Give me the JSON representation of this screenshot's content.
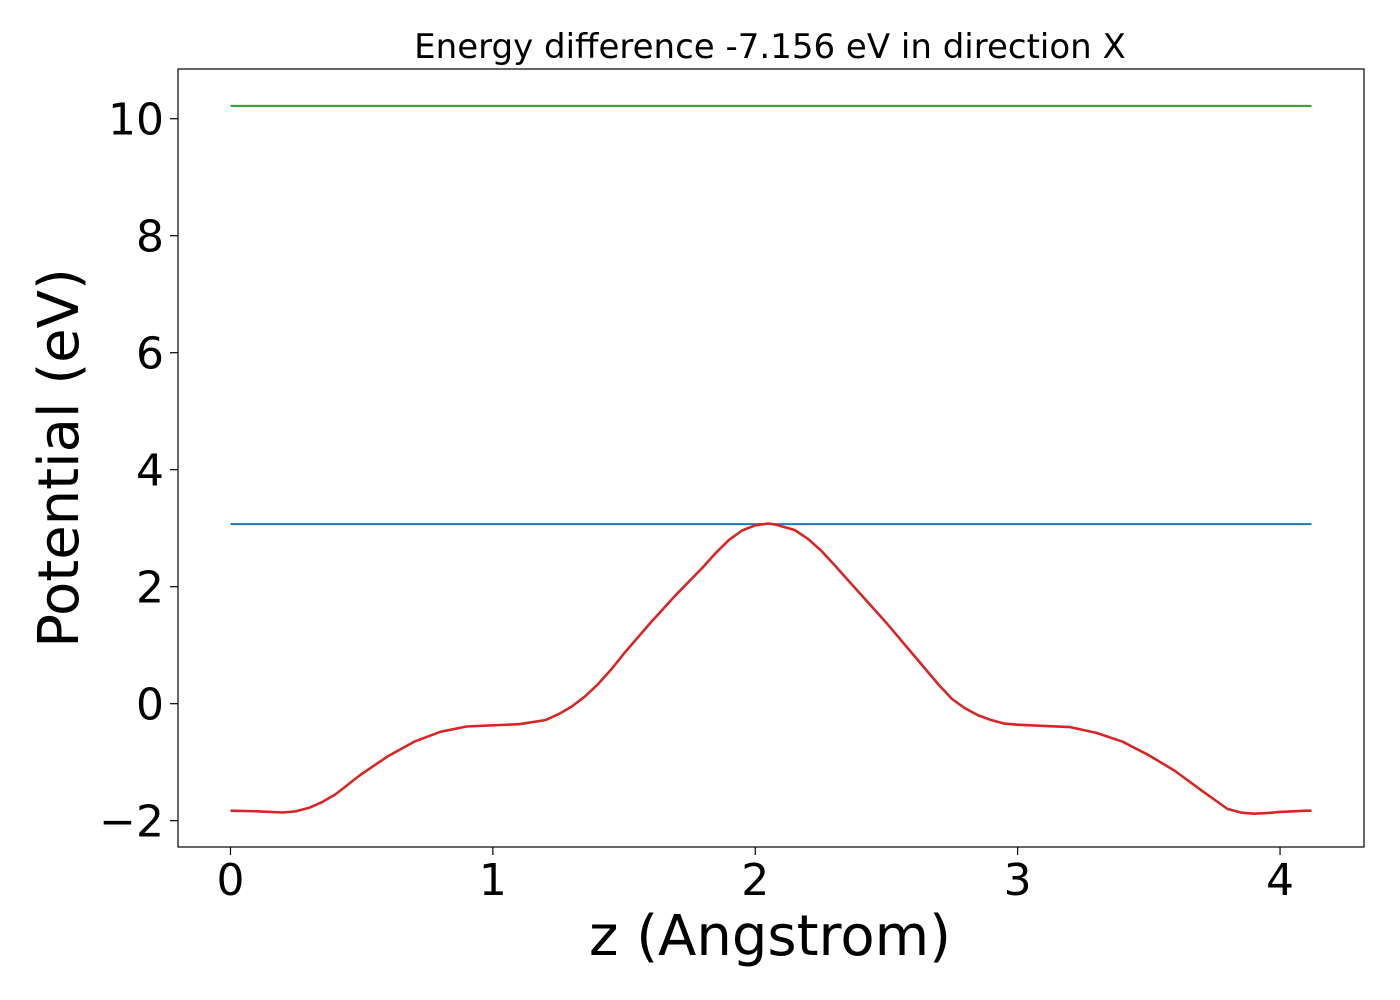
{
  "chart_data": {
    "type": "line",
    "title": "Energy difference -7.156 eV in direction X",
    "xlabel": "z (Angstrom)",
    "ylabel": "Potential (eV)",
    "xlim": [
      -0.2,
      4.32
    ],
    "ylim": [
      -2.45,
      10.85
    ],
    "xticks": [
      0,
      1,
      2,
      3,
      4
    ],
    "xtick_labels": [
      "0",
      "1",
      "2",
      "3",
      "4"
    ],
    "yticks": [
      -2,
      0,
      2,
      4,
      6,
      8,
      10
    ],
    "ytick_labels": [
      "−2",
      "0",
      "2",
      "4",
      "6",
      "8",
      "10"
    ],
    "grid": false,
    "legend": "none",
    "series": [
      {
        "color": "#2ca02c",
        "x": [
          0,
          4.12
        ],
        "y": [
          10.22,
          10.22
        ]
      },
      {
        "color": "#1f77b4",
        "x": [
          0,
          4.12
        ],
        "y": [
          3.07,
          3.07
        ]
      },
      {
        "color": "#d62728",
        "x": [
          0,
          0.1,
          0.2,
          0.25,
          0.3,
          0.35,
          0.4,
          0.5,
          0.6,
          0.7,
          0.8,
          0.9,
          1.0,
          1.1,
          1.2,
          1.25,
          1.3,
          1.35,
          1.4,
          1.45,
          1.5,
          1.6,
          1.7,
          1.8,
          1.85,
          1.9,
          1.95,
          2.0,
          2.05,
          2.08,
          2.15,
          2.2,
          2.25,
          2.3,
          2.35,
          2.4,
          2.5,
          2.6,
          2.7,
          2.75,
          2.8,
          2.85,
          2.9,
          2.95,
          3.0,
          3.1,
          3.2,
          3.3,
          3.4,
          3.5,
          3.6,
          3.7,
          3.8,
          3.85,
          3.9,
          3.95,
          4.0,
          4.1,
          4.12
        ],
        "y": [
          -1.83,
          -1.84,
          -1.86,
          -1.84,
          -1.78,
          -1.68,
          -1.55,
          -1.2,
          -0.9,
          -0.65,
          -0.48,
          -0.39,
          -0.37,
          -0.35,
          -0.28,
          -0.18,
          -0.05,
          0.12,
          0.33,
          0.58,
          0.86,
          1.38,
          1.87,
          2.33,
          2.58,
          2.8,
          2.96,
          3.05,
          3.08,
          3.06,
          2.97,
          2.82,
          2.62,
          2.38,
          2.13,
          1.88,
          1.38,
          0.85,
          0.32,
          0.08,
          -0.08,
          -0.2,
          -0.28,
          -0.34,
          -0.36,
          -0.38,
          -0.4,
          -0.5,
          -0.65,
          -0.88,
          -1.15,
          -1.48,
          -1.8,
          -1.86,
          -1.88,
          -1.87,
          -1.85,
          -1.83,
          -1.83
        ]
      }
    ]
  }
}
